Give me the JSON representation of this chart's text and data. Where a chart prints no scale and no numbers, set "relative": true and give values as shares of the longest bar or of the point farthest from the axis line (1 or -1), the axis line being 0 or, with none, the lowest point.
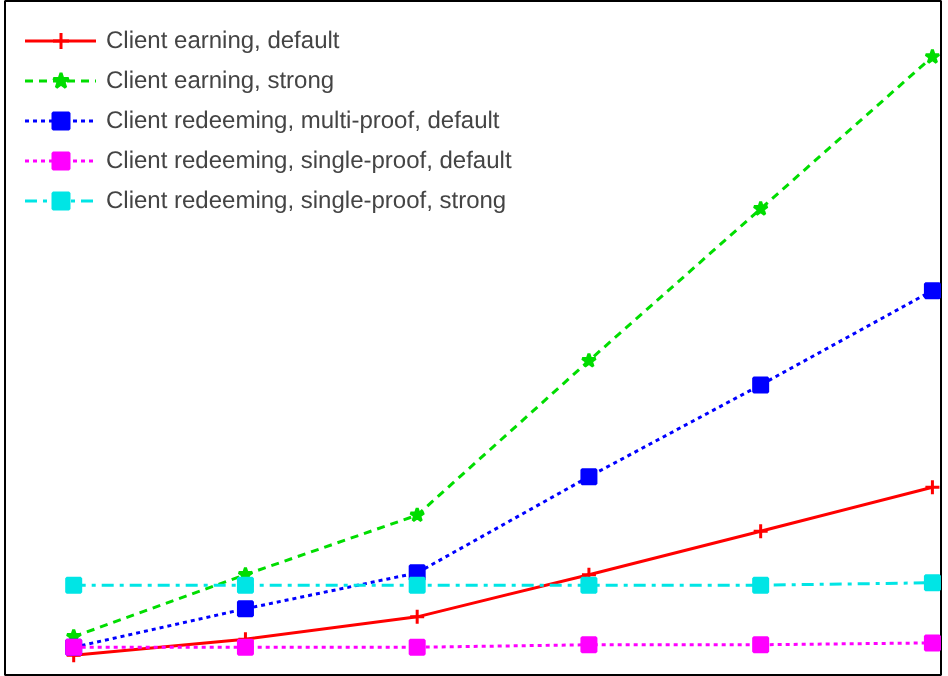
{
  "chart_data": {
    "type": "line",
    "relative": true,
    "categories": [
      null,
      null,
      null,
      null,
      null,
      null
    ],
    "grid": false,
    "legend": "top left",
    "series": [
      {
        "name": "Client earning, default",
        "color": "#ff0000",
        "marker": "cross",
        "line_style": "solid",
        "values": [
          0.035,
          0.061,
          0.097,
          0.165,
          0.235,
          0.306
        ]
      },
      {
        "name": "Client earning, strong",
        "color": "#00dd00",
        "marker": "star",
        "line_style": "dashed",
        "values": [
          0.065,
          0.165,
          0.261,
          0.51,
          0.755,
          1
        ]
      },
      {
        "name": "Client redeeming, multi-proof, default",
        "color": "#0000ff",
        "marker": "square",
        "line_style": "dotted",
        "values": [
          0.048,
          0.11,
          0.168,
          0.323,
          0.471,
          0.623
        ]
      },
      {
        "name": "Client redeeming, single-proof, default",
        "color": "#ff00ff",
        "marker": "square",
        "line_style": "dotted",
        "values": [
          0.048,
          0.048,
          0.048,
          0.052,
          0.052,
          0.055
        ]
      },
      {
        "name": "Client redeeming, single-proof, strong",
        "color": "#00e5e5",
        "marker": "square",
        "line_style": "dashdot",
        "values": [
          0.148,
          0.148,
          0.148,
          0.148,
          0.148,
          0.152
        ]
      }
    ]
  }
}
